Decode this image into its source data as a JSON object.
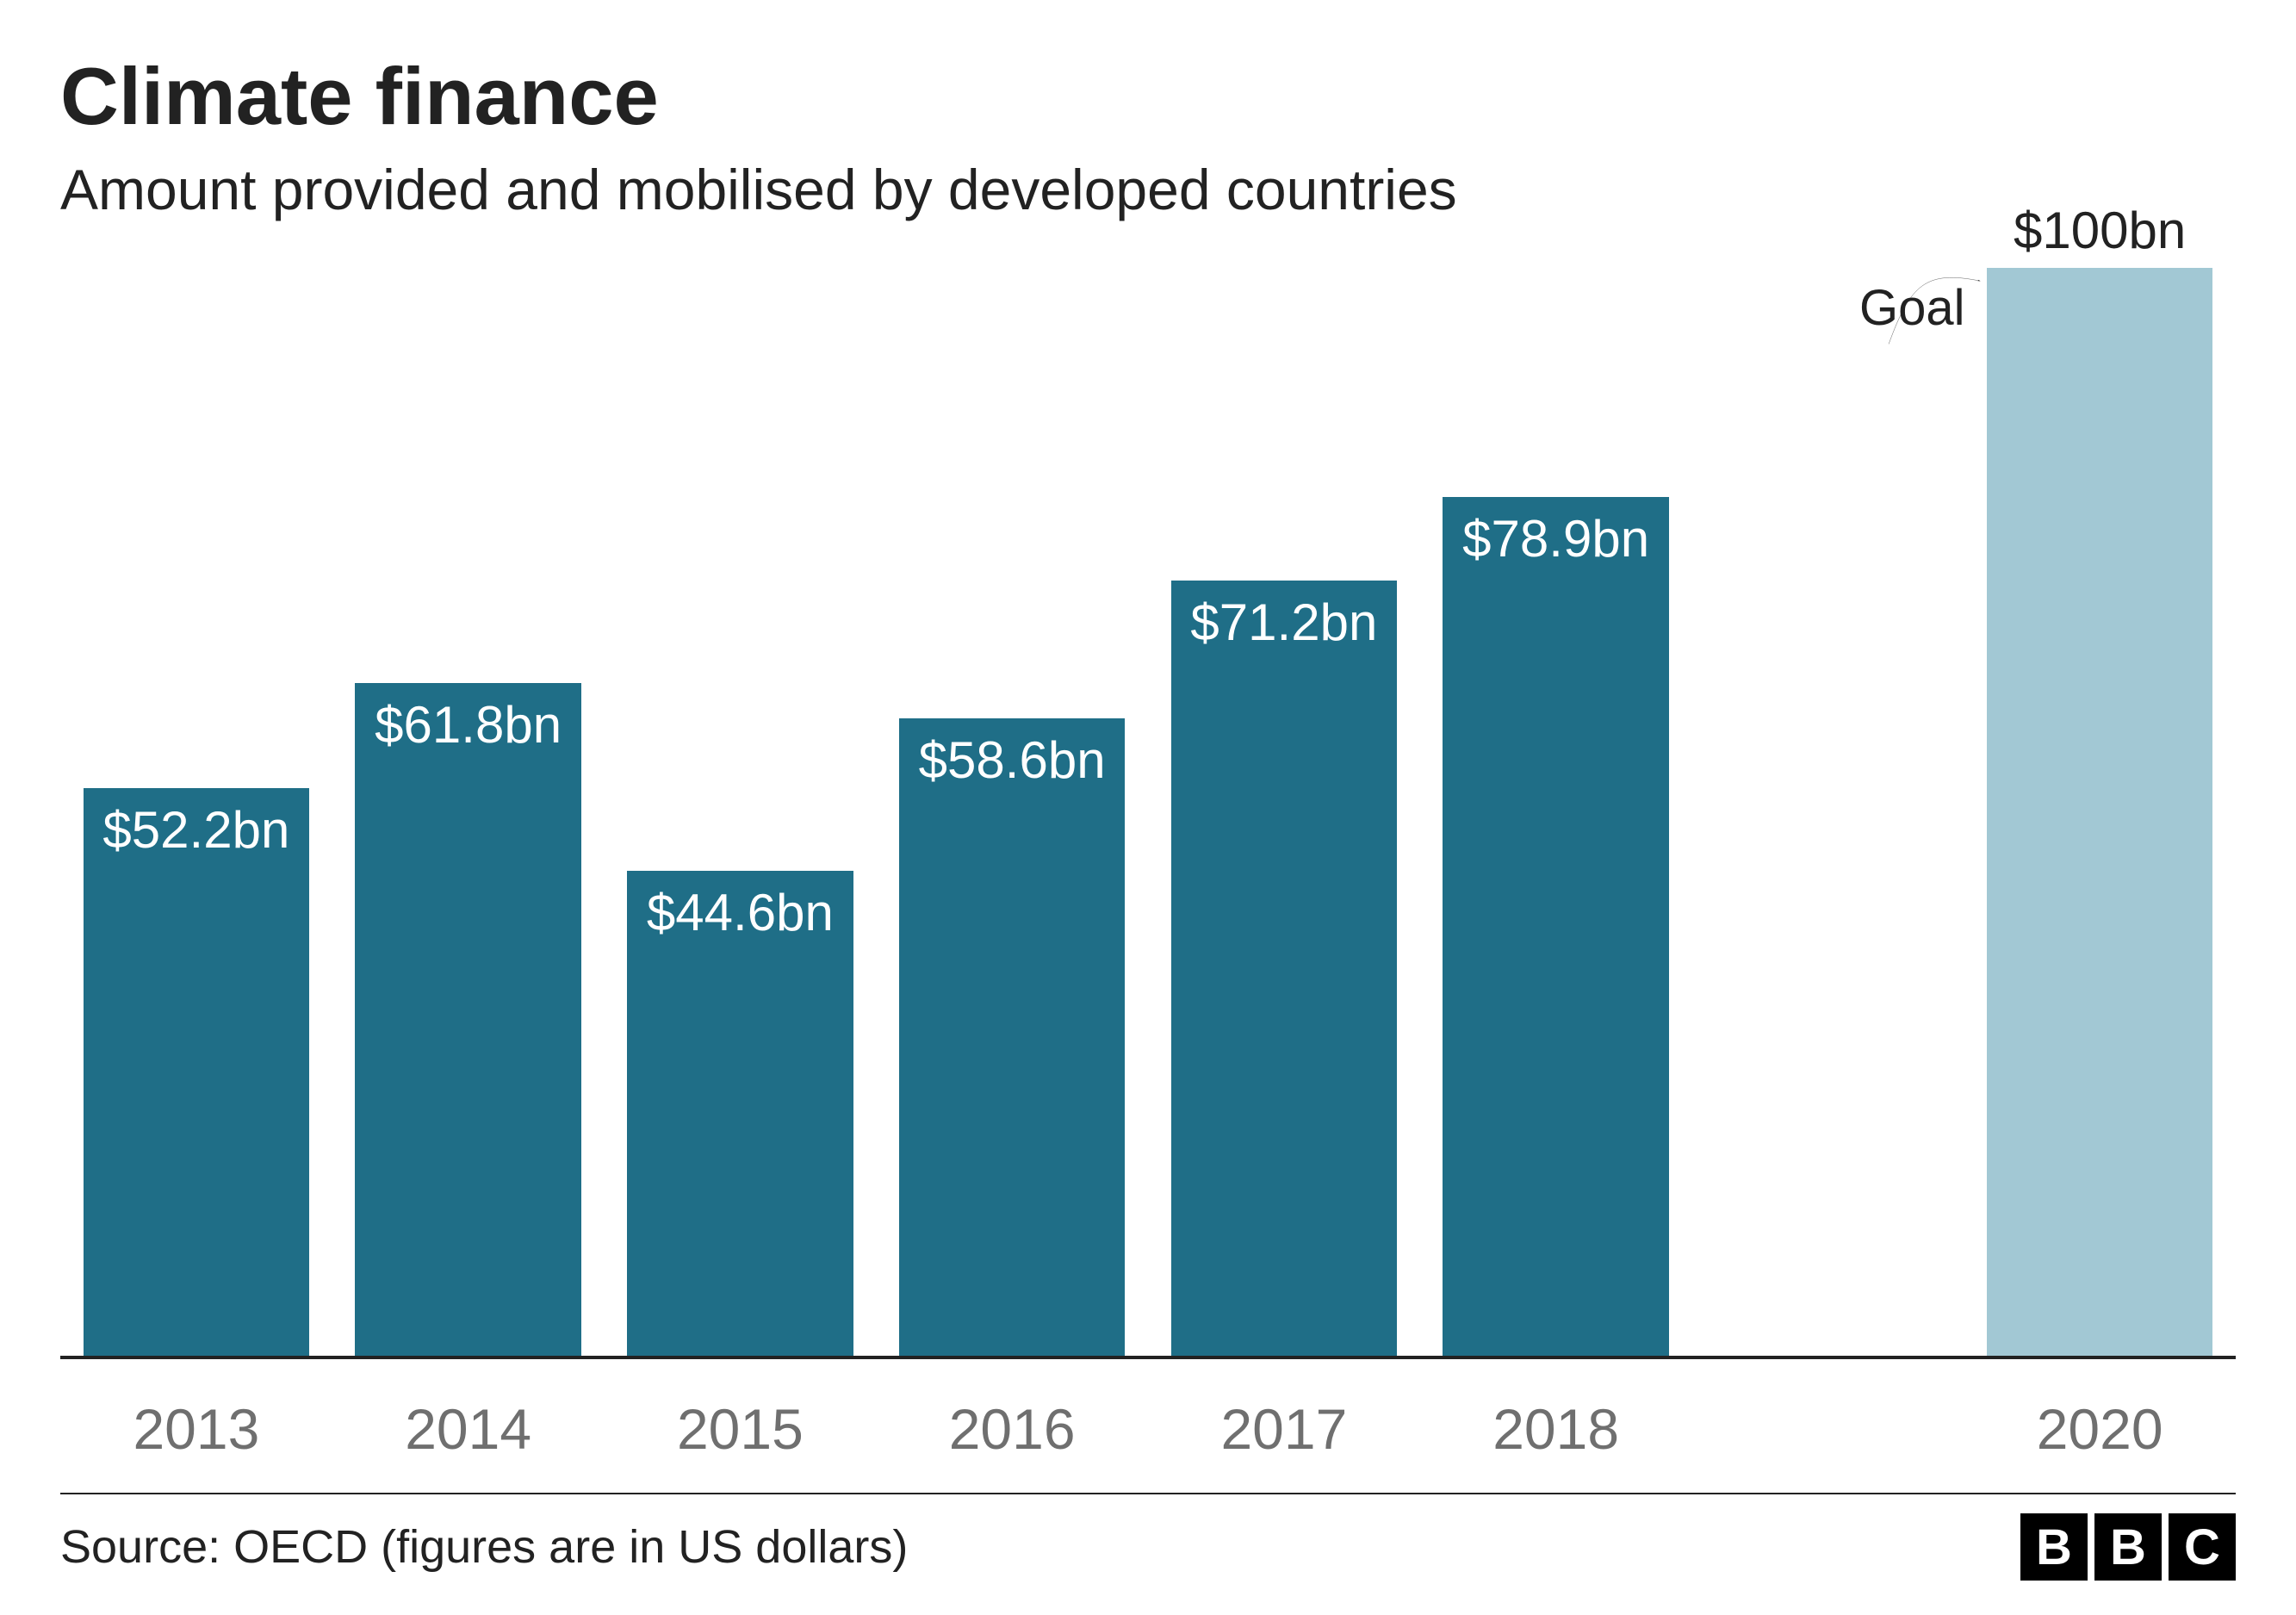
{
  "header": {
    "title": "Climate finance",
    "subtitle": "Amount provided and mobilised by developed countries",
    "title_fontsize": 94,
    "subtitle_fontsize": 66,
    "title_color": "#222222",
    "subtitle_color": "#222222"
  },
  "chart": {
    "type": "bar",
    "background_color": "#ffffff",
    "axis_color": "#222222",
    "ylim": [
      0,
      100
    ],
    "bar_width_pct": 10.4,
    "slot_width_pct": 12.5,
    "value_label_fontsize": 60,
    "value_label_color_inbar": "#ffffff",
    "value_label_color_outside": "#222222",
    "x_label_fontsize": 66,
    "x_label_color": "#6f6f6f",
    "bars": [
      {
        "year": "2013",
        "value": 52.2,
        "label": "$52.2bn",
        "color": "#1f6e87",
        "label_inside": true,
        "slot": 0
      },
      {
        "year": "2014",
        "value": 61.8,
        "label": "$61.8bn",
        "color": "#1f6e87",
        "label_inside": true,
        "slot": 1
      },
      {
        "year": "2015",
        "value": 44.6,
        "label": "$44.6bn",
        "color": "#1f6e87",
        "label_inside": true,
        "slot": 2
      },
      {
        "year": "2016",
        "value": 58.6,
        "label": "$58.6bn",
        "color": "#1f6e87",
        "label_inside": true,
        "slot": 3
      },
      {
        "year": "2017",
        "value": 71.2,
        "label": "$71.2bn",
        "color": "#1f6e87",
        "label_inside": true,
        "slot": 4
      },
      {
        "year": "2018",
        "value": 78.9,
        "label": "$78.9bn",
        "color": "#1f6e87",
        "label_inside": true,
        "slot": 5
      },
      {
        "year": "2020",
        "value": 100,
        "label": "$100bn",
        "color": "#a2c8d4",
        "label_inside": false,
        "slot": 7
      }
    ],
    "annotation": {
      "text": "Goal",
      "fontsize": 58,
      "color": "#222222",
      "arrow_color": "#222222"
    }
  },
  "footer": {
    "source": "Source: OECD (figures are in US dollars)",
    "source_fontsize": 54,
    "source_color": "#222222",
    "divider_color": "#222222",
    "logo_letters": [
      "B",
      "B",
      "C"
    ],
    "logo_bg": "#000000",
    "logo_fg": "#ffffff"
  }
}
